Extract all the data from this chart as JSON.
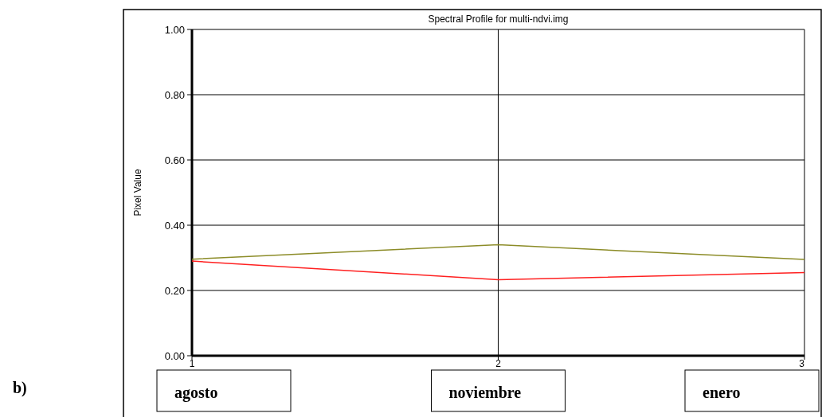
{
  "chart_data": {
    "type": "line",
    "title": "Spectral Profile for multi-ndvi.img",
    "ylabel": "Pixel Value",
    "x": [
      1,
      2,
      3
    ],
    "xlim": [
      1,
      3
    ],
    "xticks": [
      1,
      2,
      3
    ],
    "ylim": [
      0,
      1
    ],
    "yticks": [
      {
        "value": 0,
        "label": "0.00"
      },
      {
        "value": 0.2,
        "label": "0.20"
      },
      {
        "value": 0.4,
        "label": "0.40"
      },
      {
        "value": 0.6,
        "label": "0.60"
      },
      {
        "value": 0.8,
        "label": "0.80"
      },
      {
        "value": 1,
        "label": "1.00"
      }
    ],
    "series": [
      {
        "color": "#8c8c28",
        "values": [
          0.296,
          0.34,
          0.295
        ]
      },
      {
        "color": "#ff2020",
        "values": [
          0.29,
          0.233,
          0.255
        ]
      }
    ],
    "grid": true,
    "line_style": "solid",
    "annotations": [
      "agosto",
      "noviembre",
      "enero",
      "b)"
    ]
  }
}
